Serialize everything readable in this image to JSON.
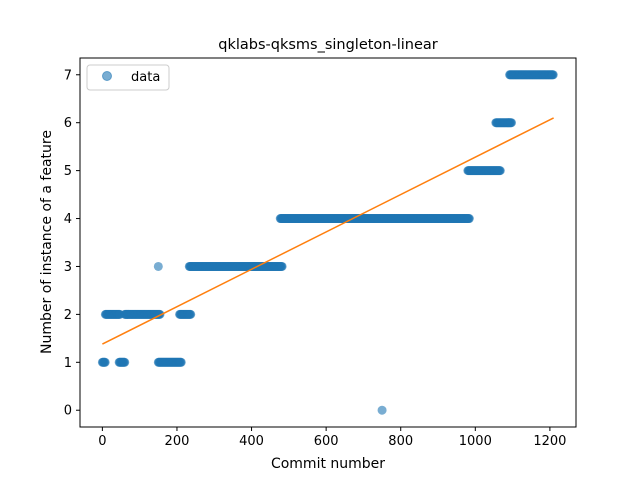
{
  "chart_data": {
    "type": "scatter",
    "title": "qklabs-qksms_singleton-linear",
    "xlabel": "Commit number",
    "ylabel": "Number of instance of a feature",
    "xlim": [
      -60,
      1270
    ],
    "ylim": [
      -0.35,
      7.35
    ],
    "xticks": [
      0,
      200,
      400,
      600,
      800,
      1000,
      1200
    ],
    "yticks": [
      0,
      1,
      2,
      3,
      4,
      5,
      6,
      7
    ],
    "grid": false,
    "legend": {
      "position": "top-left",
      "entries": [
        "data"
      ]
    },
    "colors": {
      "data": "#1f77b4",
      "fit": "#ff7f0e"
    },
    "series": [
      {
        "name": "data",
        "kind": "scatter",
        "segments": [
          {
            "x_start": 0,
            "x_end": 8,
            "y": 1
          },
          {
            "x_start": 8,
            "x_end": 48,
            "y": 2
          },
          {
            "x_start": 45,
            "x_end": 60,
            "y": 1
          },
          {
            "x_start": 60,
            "x_end": 155,
            "y": 2
          },
          {
            "x_start": 150,
            "x_end": 212,
            "y": 1
          },
          {
            "x_start": 207,
            "x_end": 238,
            "y": 2
          },
          {
            "x_start": 233,
            "x_end": 482,
            "y": 3
          },
          {
            "x_start": 477,
            "x_end": 985,
            "y": 4
          },
          {
            "x_start": 980,
            "x_end": 1068,
            "y": 5
          },
          {
            "x_start": 1055,
            "x_end": 1098,
            "y": 6
          },
          {
            "x_start": 1092,
            "x_end": 1210,
            "y": 7
          }
        ],
        "points": [
          {
            "x": 150,
            "y": 3
          },
          {
            "x": 750,
            "y": 0
          }
        ]
      },
      {
        "name": "",
        "kind": "line",
        "x": [
          0,
          1210
        ],
        "y": [
          1.38,
          6.1
        ]
      }
    ]
  }
}
